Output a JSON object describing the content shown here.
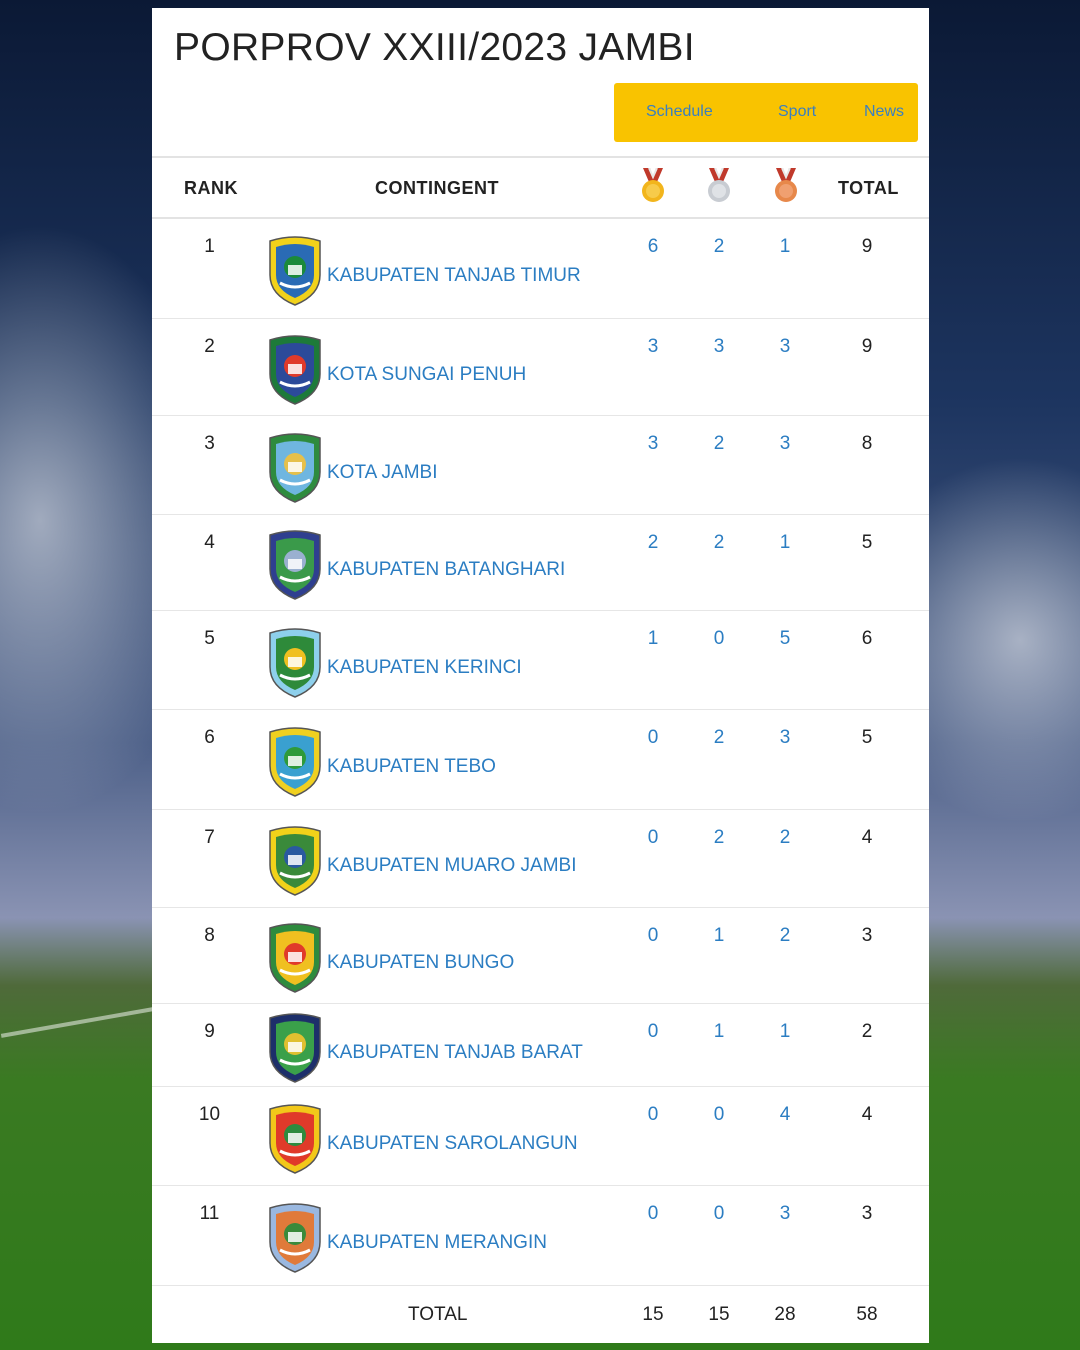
{
  "header": {
    "title": "PORPROV XXIII/2023 JAMBI",
    "nav": [
      "Schedule",
      "Sport",
      "News"
    ]
  },
  "table": {
    "columns": {
      "rank": "RANK",
      "contingent": "CONTINGENT",
      "gold": "gold-medal-icon",
      "silver": "silver-medal-icon",
      "bronze": "bronze-medal-icon",
      "total": "TOTAL"
    },
    "rows": [
      {
        "rank": "1",
        "name": "KABUPATEN TANJAB TIMUR",
        "gold": "6",
        "silver": "2",
        "bronze": "1",
        "total": "9",
        "logo": "tanjab-timur-emblem-icon",
        "colors": [
          "#f2d21a",
          "#2a6bb5",
          "#1b8a3a"
        ]
      },
      {
        "rank": "2",
        "name": "KOTA SUNGAI PENUH",
        "gold": "3",
        "silver": "3",
        "bronze": "3",
        "total": "9",
        "logo": "sungai-penuh-emblem-icon",
        "colors": [
          "#1d7a3a",
          "#2c4a9a",
          "#e03a2a"
        ]
      },
      {
        "rank": "3",
        "name": "KOTA JAMBI",
        "gold": "3",
        "silver": "2",
        "bronze": "3",
        "total": "8",
        "logo": "kota-jambi-emblem-icon",
        "colors": [
          "#2e8b3e",
          "#6fb6e0",
          "#e6c04a"
        ]
      },
      {
        "rank": "4",
        "name": "KABUPATEN BATANGHARI",
        "gold": "2",
        "silver": "2",
        "bronze": "1",
        "total": "5",
        "logo": "batanghari-emblem-icon",
        "colors": [
          "#2f3f8f",
          "#3a9a4a",
          "#9ab0d0"
        ]
      },
      {
        "rank": "5",
        "name": "KABUPATEN KERINCI",
        "gold": "1",
        "silver": "0",
        "bronze": "5",
        "total": "6",
        "logo": "kerinci-emblem-icon",
        "colors": [
          "#8ed0ec",
          "#2e8a3a",
          "#f0c020"
        ]
      },
      {
        "rank": "6",
        "name": "KABUPATEN TEBO",
        "gold": "0",
        "silver": "2",
        "bronze": "3",
        "total": "5",
        "logo": "tebo-emblem-icon",
        "colors": [
          "#f0d020",
          "#3aa0d0",
          "#2e9a3a"
        ]
      },
      {
        "rank": "7",
        "name": "KABUPATEN MUARO JAMBI",
        "gold": "0",
        "silver": "2",
        "bronze": "2",
        "total": "4",
        "logo": "muaro-jambi-emblem-icon",
        "colors": [
          "#f2d21a",
          "#3a8a3a",
          "#2a5aa0"
        ]
      },
      {
        "rank": "8",
        "name": "KABUPATEN BUNGO",
        "gold": "0",
        "silver": "1",
        "bronze": "2",
        "total": "3",
        "logo": "bungo-emblem-icon",
        "colors": [
          "#2e8b3e",
          "#f0c020",
          "#e03a2a"
        ]
      },
      {
        "rank": "9",
        "name": "KABUPATEN TANJAB BARAT",
        "gold": "0",
        "silver": "1",
        "bronze": "1",
        "total": "2",
        "logo": "tanjab-barat-emblem-icon",
        "colors": [
          "#1d2f6a",
          "#3aa04a",
          "#e0c030"
        ]
      },
      {
        "rank": "10",
        "name": "KABUPATEN SAROLANGUN",
        "gold": "0",
        "silver": "0",
        "bronze": "4",
        "total": "4",
        "logo": "sarolangun-emblem-icon",
        "colors": [
          "#f2c81a",
          "#e03a2a",
          "#2e8b3e"
        ]
      },
      {
        "rank": "11",
        "name": "KABUPATEN MERANGIN",
        "gold": "0",
        "silver": "0",
        "bronze": "3",
        "total": "3",
        "logo": "merangin-emblem-icon",
        "colors": [
          "#9ab8e0",
          "#e07a3a",
          "#3a8a3a"
        ]
      }
    ],
    "footer": {
      "label": "TOTAL",
      "gold": "15",
      "silver": "15",
      "bronze": "28",
      "total": "58"
    }
  },
  "theme": {
    "nav_bg": "#f9c300",
    "link": "#2b7dc2",
    "gold": "#f2b51c",
    "silver": "#c8ccd2",
    "bronze": "#e7884a",
    "ribbon": "#c0392b"
  }
}
